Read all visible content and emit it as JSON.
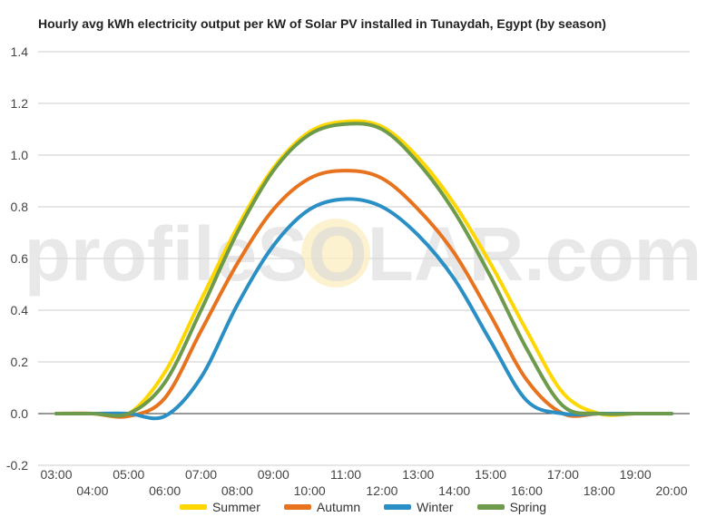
{
  "chart_data": {
    "type": "line",
    "title": "Hourly avg kWh electricity output per kW of Solar PV installed in Tunaydah, Egypt (by season)",
    "xlabel": "",
    "ylabel": "",
    "ylim": [
      -0.2,
      1.4
    ],
    "y_ticks": [
      "-0.2",
      "0.0",
      "0.2",
      "0.4",
      "0.6",
      "0.8",
      "1.0",
      "1.2",
      "1.4"
    ],
    "categories": [
      "03:00",
      "04:00",
      "05:00",
      "06:00",
      "07:00",
      "08:00",
      "09:00",
      "10:00",
      "11:00",
      "12:00",
      "13:00",
      "14:00",
      "15:00",
      "16:00",
      "17:00",
      "18:00",
      "19:00",
      "20:00"
    ],
    "grid": true,
    "legend_position": "bottom",
    "series": [
      {
        "name": "Summer",
        "color": "#FFD700",
        "values": [
          0.0,
          0.0,
          0.0,
          0.16,
          0.44,
          0.72,
          0.95,
          1.09,
          1.13,
          1.11,
          0.99,
          0.81,
          0.58,
          0.32,
          0.08,
          0.0,
          0.0,
          0.0
        ]
      },
      {
        "name": "Autumn",
        "color": "#E8731F",
        "values": [
          0.0,
          0.0,
          -0.01,
          0.06,
          0.32,
          0.58,
          0.79,
          0.91,
          0.94,
          0.91,
          0.79,
          0.62,
          0.38,
          0.13,
          0.0,
          0.0,
          0.0,
          0.0
        ]
      },
      {
        "name": "Winter",
        "color": "#2A8FC4",
        "values": [
          0.0,
          0.0,
          0.0,
          -0.01,
          0.14,
          0.42,
          0.65,
          0.79,
          0.83,
          0.8,
          0.69,
          0.52,
          0.28,
          0.05,
          0.0,
          0.0,
          0.0,
          0.0
        ]
      },
      {
        "name": "Spring",
        "color": "#6E9A4C",
        "values": [
          0.0,
          0.0,
          0.0,
          0.12,
          0.4,
          0.7,
          0.94,
          1.08,
          1.12,
          1.1,
          0.97,
          0.78,
          0.53,
          0.25,
          0.03,
          0.0,
          0.0,
          0.0
        ]
      }
    ]
  },
  "watermark": {
    "text": "profileSOLAR.com"
  }
}
